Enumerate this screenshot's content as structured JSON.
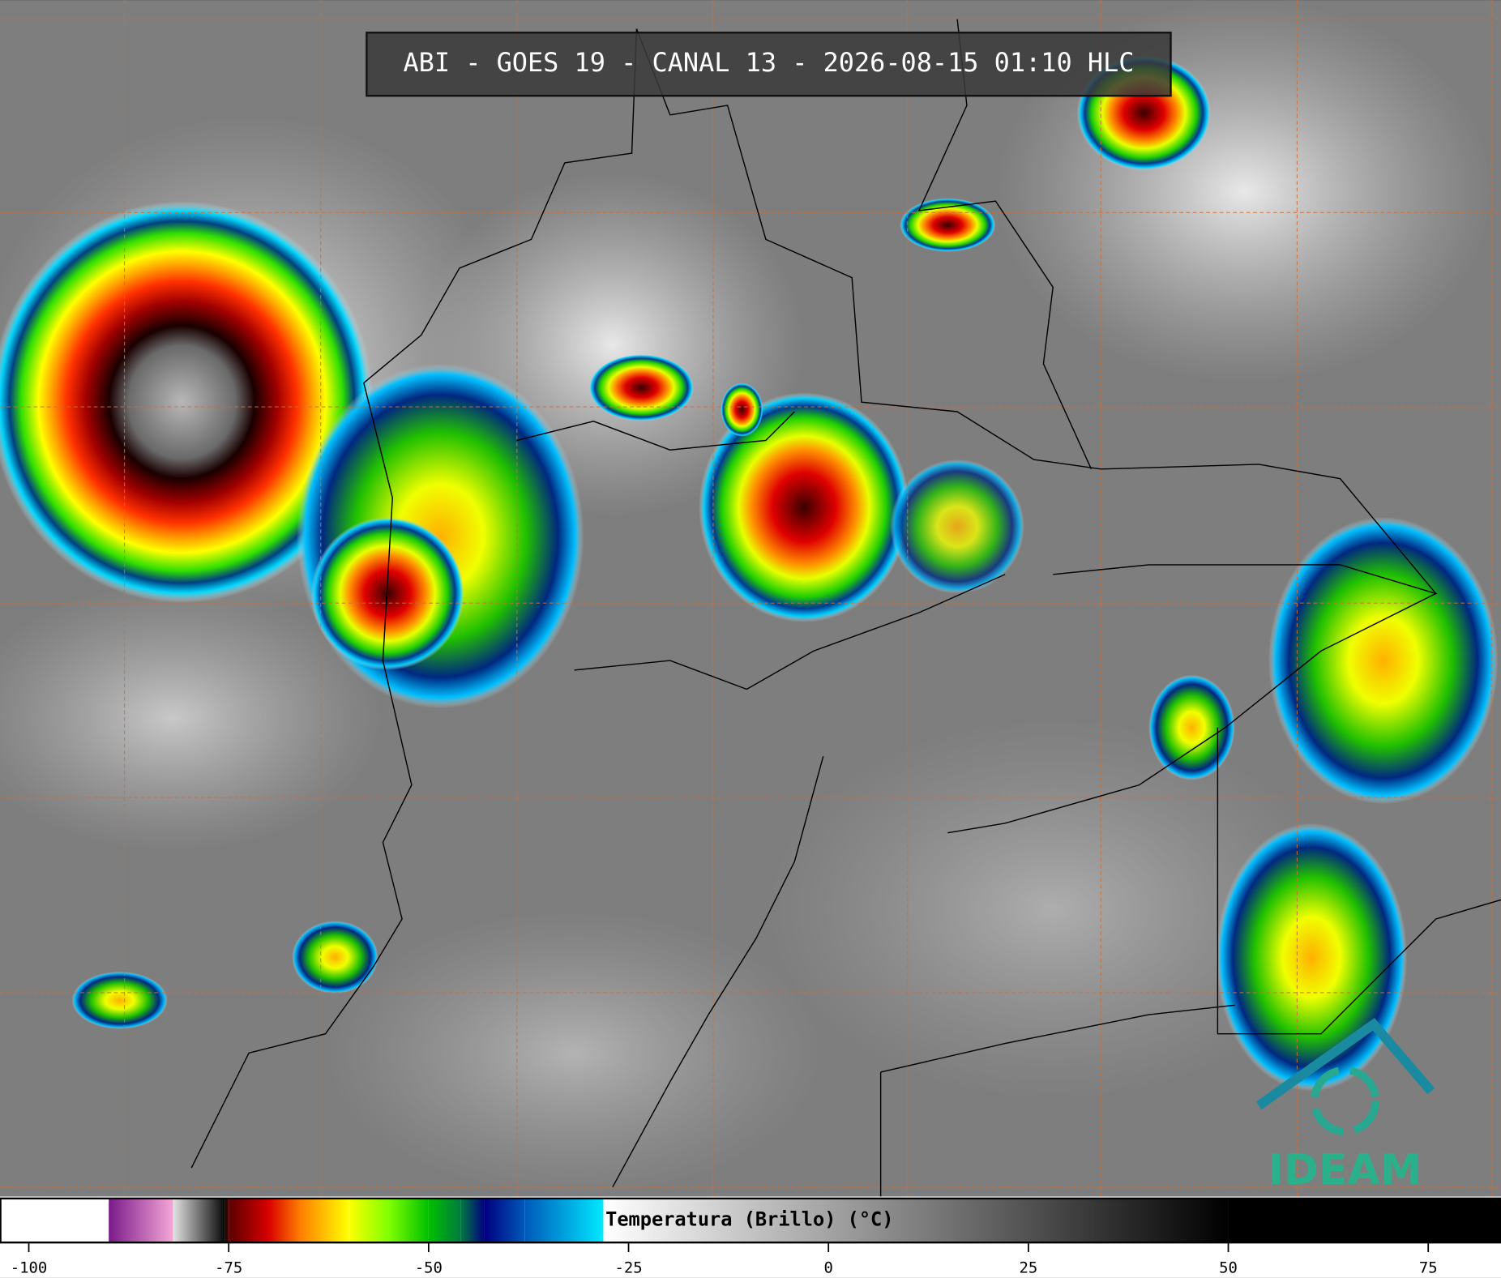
{
  "header": {
    "title": "ABI - GOES 19 - CANAL 13 - 2026-08-15 01:10 HLC"
  },
  "colorbar": {
    "label": "Temperatura (Brillo) (°C)",
    "lim": [
      -103.6,
      84.1
    ],
    "ticks": [
      -100,
      -75,
      -50,
      -25,
      0,
      25,
      50,
      75
    ],
    "colormap": [
      {
        "value": -90,
        "color": "#7a1a8a"
      },
      {
        "value": -82,
        "color": "#f4a6d6"
      },
      {
        "value": -81.9,
        "color": "#e0e0e0"
      },
      {
        "value": -75.5,
        "color": "#080808"
      },
      {
        "value": -75,
        "color": "#5a0000"
      },
      {
        "value": -70,
        "color": "#d80000"
      },
      {
        "value": -66,
        "color": "#ff8000"
      },
      {
        "value": -60,
        "color": "#ffff00"
      },
      {
        "value": -55,
        "color": "#80ff00"
      },
      {
        "value": -50,
        "color": "#00c000"
      },
      {
        "value": -46,
        "color": "#007a40"
      },
      {
        "value": -43,
        "color": "#000080"
      },
      {
        "value": -38,
        "color": "#0058b8"
      },
      {
        "value": -28.2,
        "color": "#00e8ff"
      },
      {
        "value": -28.1,
        "color": "#ffffff"
      },
      {
        "value": 50,
        "color": "#000000"
      }
    ]
  },
  "logo": {
    "text": "IDEAM"
  }
}
